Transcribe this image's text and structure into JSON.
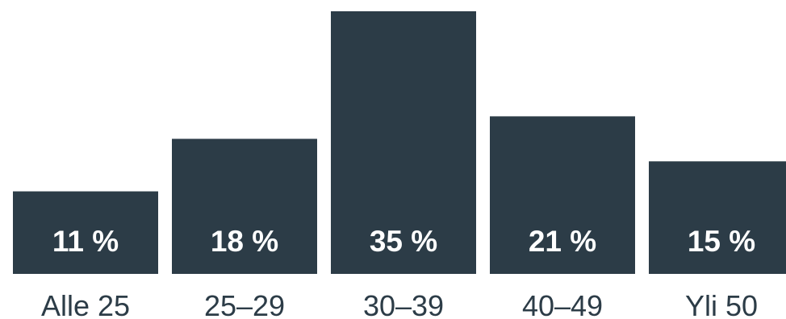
{
  "chart_data": {
    "type": "bar",
    "categories": [
      "Alle 25",
      "25–29",
      "30–39",
      "40–49",
      "Yli 50"
    ],
    "values": [
      11,
      18,
      35,
      21,
      15
    ],
    "value_labels": [
      "11 %",
      "18 %",
      "35 %",
      "21 %",
      "15 %"
    ],
    "title": "",
    "xlabel": "",
    "ylabel": "",
    "ylim": [
      0,
      35
    ],
    "grid": false,
    "legend": "none",
    "bar_color": "#2c3c47",
    "label_color": "#ffffff"
  }
}
